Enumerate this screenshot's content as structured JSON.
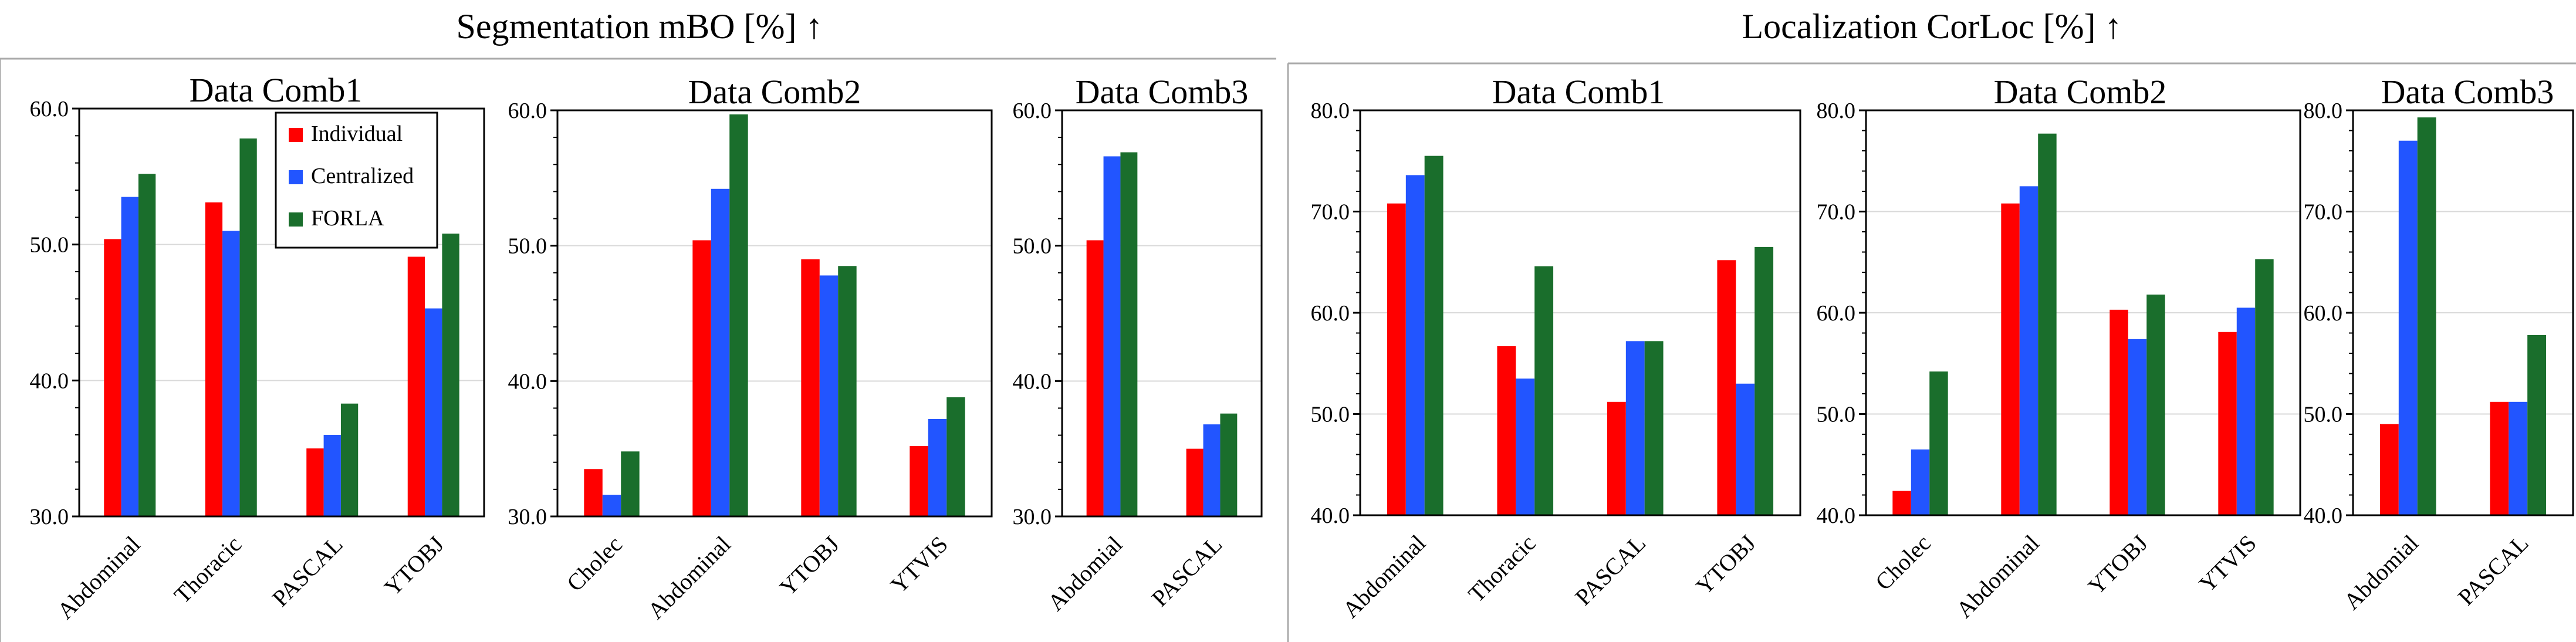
{
  "section_titles": [
    "Segmentation mBO [%] ↑",
    "Localization CorLoc [%] ↑"
  ],
  "legend": [
    {
      "name": "Individual",
      "color": "#ff0000"
    },
    {
      "name": "Centralized",
      "color": "#2255ff"
    },
    {
      "name": "FORLA",
      "color": "#1a6e2c"
    }
  ],
  "chart_data": [
    {
      "type": "bar",
      "section": "Segmentation mBO [%] ↑",
      "title": "Data Comb1",
      "categories": [
        "Abdominal",
        "Thoracic",
        "PASCAL",
        "YTOBJ"
      ],
      "ylim": [
        30,
        60
      ],
      "yticks": [
        "30.0",
        "40.0",
        "50.0",
        "60.0"
      ],
      "legend": true,
      "series": [
        {
          "name": "Individual",
          "values": [
            50.4,
            53.1,
            35.0,
            49.1
          ]
        },
        {
          "name": "Centralized",
          "values": [
            53.5,
            51.0,
            36.0,
            45.3
          ]
        },
        {
          "name": "FORLA",
          "values": [
            55.2,
            57.8,
            38.3,
            50.8
          ]
        }
      ]
    },
    {
      "type": "bar",
      "section": "Segmentation mBO [%] ↑",
      "title": "Data Comb2",
      "categories": [
        "Cholec",
        "Abdominal",
        "YTOBJ",
        "YTVIS"
      ],
      "ylim": [
        30,
        60
      ],
      "yticks": [
        "30.0",
        "40.0",
        "50.0",
        "60.0"
      ],
      "legend": false,
      "series": [
        {
          "name": "Individual",
          "values": [
            33.5,
            50.4,
            49.0,
            35.2
          ]
        },
        {
          "name": "Centralized",
          "values": [
            31.6,
            54.2,
            47.8,
            37.2
          ]
        },
        {
          "name": "FORLA",
          "values": [
            34.8,
            59.7,
            48.5,
            38.8
          ]
        }
      ]
    },
    {
      "type": "bar",
      "section": "Segmentation mBO [%] ↑",
      "title": "Data Comb3",
      "categories": [
        "Abdomial",
        "PASCAL"
      ],
      "ylim": [
        30,
        60
      ],
      "yticks": [
        "30.0",
        "40.0",
        "50.0",
        "60.0"
      ],
      "legend": false,
      "series": [
        {
          "name": "Individual",
          "values": [
            50.4,
            35.0
          ]
        },
        {
          "name": "Centralized",
          "values": [
            56.6,
            36.8
          ]
        },
        {
          "name": "FORLA",
          "values": [
            56.9,
            37.6
          ]
        }
      ]
    },
    {
      "type": "bar",
      "section": "Localization CorLoc [%] ↑",
      "title": "Data Comb1",
      "categories": [
        "Abdominal",
        "Thoracic",
        "PASCAL",
        "YTOBJ"
      ],
      "ylim": [
        40,
        80
      ],
      "yticks": [
        "40.0",
        "50.0",
        "60.0",
        "70.0",
        "80.0"
      ],
      "legend": false,
      "series": [
        {
          "name": "Individual",
          "values": [
            70.8,
            56.7,
            51.2,
            65.2
          ]
        },
        {
          "name": "Centralized",
          "values": [
            73.6,
            53.5,
            57.2,
            53.0
          ]
        },
        {
          "name": "FORLA",
          "values": [
            75.5,
            64.6,
            57.2,
            66.5
          ]
        }
      ]
    },
    {
      "type": "bar",
      "section": "Localization CorLoc [%] ↑",
      "title": "Data Comb2",
      "categories": [
        "Cholec",
        "Abdominal",
        "YTOBJ",
        "YTVIS"
      ],
      "ylim": [
        40,
        80
      ],
      "yticks": [
        "40.0",
        "50.0",
        "60.0",
        "70.0",
        "80.0"
      ],
      "legend": false,
      "series": [
        {
          "name": "Individual",
          "values": [
            42.4,
            70.8,
            60.3,
            58.1
          ]
        },
        {
          "name": "Centralized",
          "values": [
            46.5,
            72.5,
            57.4,
            60.5
          ]
        },
        {
          "name": "FORLA",
          "values": [
            54.2,
            77.7,
            61.8,
            65.3
          ]
        }
      ]
    },
    {
      "type": "bar",
      "section": "Localization CorLoc [%] ↑",
      "title": "Data Comb3",
      "categories": [
        "Abdomial",
        "PASCAL"
      ],
      "ylim": [
        40,
        80
      ],
      "yticks": [
        "40.0",
        "50.0",
        "60.0",
        "70.0",
        "80.0"
      ],
      "legend": false,
      "series": [
        {
          "name": "Individual",
          "values": [
            49.0,
            51.2
          ]
        },
        {
          "name": "Centralized",
          "values": [
            77.0,
            51.2
          ]
        },
        {
          "name": "FORLA",
          "values": [
            79.3,
            57.8
          ]
        }
      ]
    }
  ]
}
